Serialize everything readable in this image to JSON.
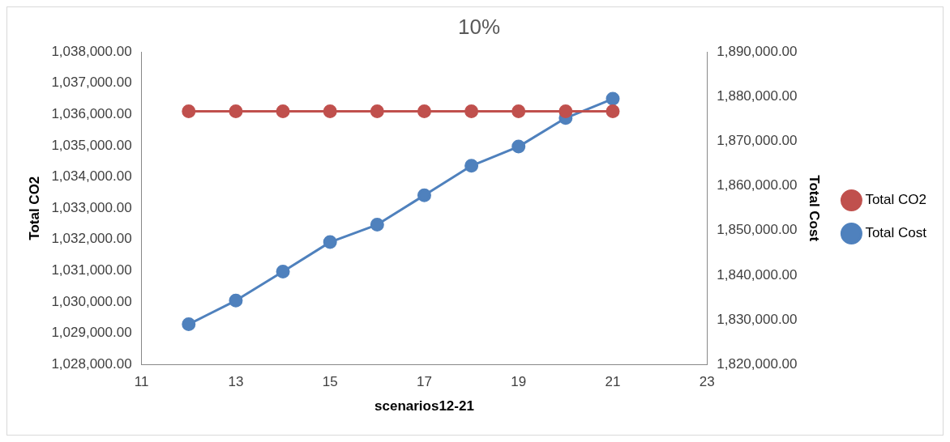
{
  "chart_data": {
    "type": "line",
    "title": "10%",
    "xlabel": "scenarios12-21",
    "ylabel": "Total CO2",
    "y2label": "Total Cost",
    "x": [
      12,
      13,
      14,
      15,
      16,
      17,
      18,
      19,
      20,
      21
    ],
    "series": [
      {
        "name": "Total CO2",
        "color": "#c0504d",
        "values": [
          1036100,
          1036100,
          1036100,
          1036100,
          1036100,
          1036100,
          1036100,
          1036100,
          1036100,
          1036100
        ]
      },
      {
        "name": "Total Cost",
        "color": "#4f81bd",
        "axis": "y2",
        "values": [
          1829000,
          1834300,
          1840800,
          1847400,
          1851300,
          1857900,
          1864500,
          1868800,
          1875200,
          1879500
        ]
      }
    ],
    "xlim": [
      11,
      23
    ],
    "xticks": [
      11,
      13,
      15,
      17,
      19,
      21,
      23
    ],
    "ylim": [
      1028000,
      1038000
    ],
    "yticks": [
      {
        "value": 1028000,
        "label": "1,028,000.00"
      },
      {
        "value": 1029000,
        "label": "1,029,000.00"
      },
      {
        "value": 1030000,
        "label": "1,030,000.00"
      },
      {
        "value": 1031000,
        "label": "1,031,000.00"
      },
      {
        "value": 1032000,
        "label": "1,032,000.00"
      },
      {
        "value": 1033000,
        "label": "1,033,000.00"
      },
      {
        "value": 1034000,
        "label": "1,034,000.00"
      },
      {
        "value": 1035000,
        "label": "1,035,000.00"
      },
      {
        "value": 1036000,
        "label": "1,036,000.00"
      },
      {
        "value": 1037000,
        "label": "1,037,000.00"
      },
      {
        "value": 1038000,
        "label": "1,038,000.00"
      }
    ],
    "y2lim": [
      1820000,
      1890000
    ],
    "y2ticks": [
      {
        "value": 1820000,
        "label": "1,820,000.00"
      },
      {
        "value": 1830000,
        "label": "1,830,000.00"
      },
      {
        "value": 1840000,
        "label": "1,840,000.00"
      },
      {
        "value": 1850000,
        "label": "1,850,000.00"
      },
      {
        "value": 1860000,
        "label": "1,860,000.00"
      },
      {
        "value": 1870000,
        "label": "1,870,000.00"
      },
      {
        "value": 1880000,
        "label": "1,880,000.00"
      },
      {
        "value": 1890000,
        "label": "1,890,000.00"
      }
    ],
    "grid": false,
    "legend": "right",
    "marker": "circle",
    "line_style": "solid"
  }
}
